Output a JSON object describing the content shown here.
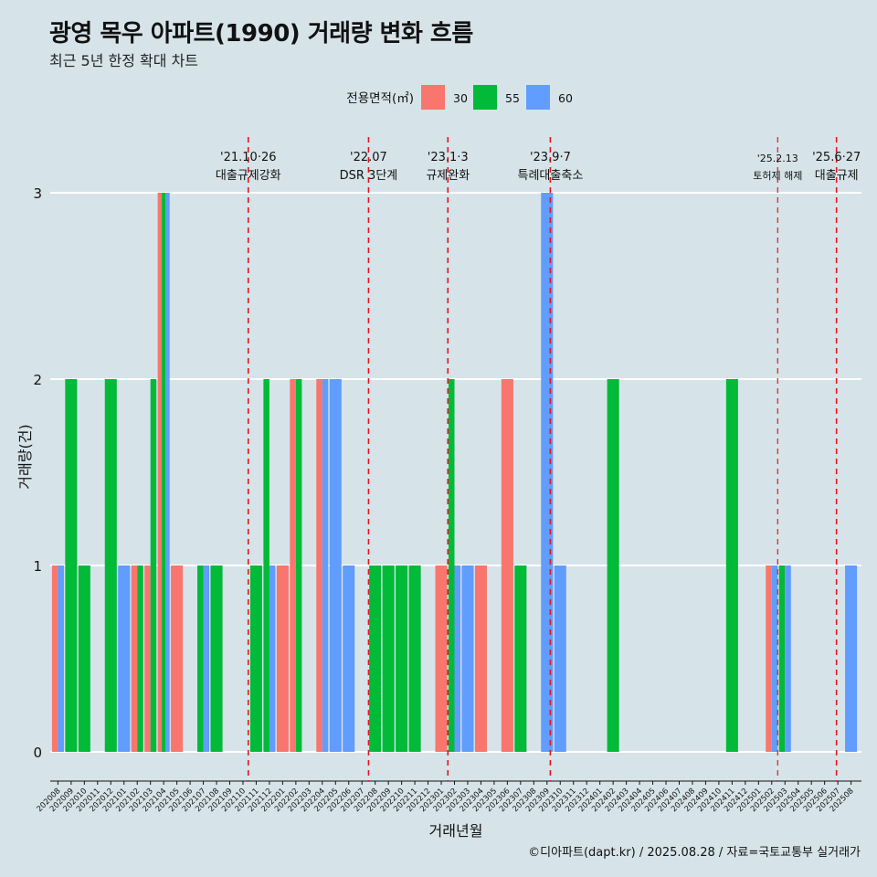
{
  "chart_data": {
    "type": "bar",
    "title": "광영 목우 아파트(1990) 거래량 변화 흐름",
    "subtitle": "최근 5년 한정 확대 차트",
    "xlabel": "거래년월",
    "ylabel": "거래량(건)",
    "ylim": [
      0,
      3
    ],
    "yticks": [
      0,
      1,
      2,
      3
    ],
    "legend": {
      "title": "전용면적(㎡)",
      "position": "top",
      "entries": [
        {
          "name": "30",
          "color": "#f8766d"
        },
        {
          "name": "55",
          "color": "#00ba38"
        },
        {
          "name": "60",
          "color": "#619cff"
        }
      ]
    },
    "categories": [
      "202008",
      "202009",
      "202010",
      "202011",
      "202012",
      "202101",
      "202102",
      "202103",
      "202104",
      "202105",
      "202106",
      "202107",
      "202108",
      "202109",
      "202110",
      "202111",
      "202112",
      "202201",
      "202202",
      "202203",
      "202204",
      "202205",
      "202206",
      "202207",
      "202208",
      "202209",
      "202210",
      "202211",
      "202212",
      "202301",
      "202302",
      "202303",
      "202304",
      "202305",
      "202306",
      "202307",
      "202308",
      "202309",
      "202310",
      "202311",
      "202312",
      "202401",
      "202402",
      "202403",
      "202404",
      "202405",
      "202406",
      "202407",
      "202408",
      "202409",
      "202410",
      "202411",
      "202412",
      "202501",
      "202502",
      "202503",
      "202504",
      "202505",
      "202506",
      "202507",
      "202508"
    ],
    "series": [
      {
        "name": "30",
        "values": [
          1,
          0,
          0,
          0,
          0,
          0,
          1,
          1,
          3,
          1,
          0,
          0,
          0,
          0,
          0,
          0,
          0,
          1,
          2,
          0,
          2,
          0,
          0,
          0,
          0,
          0,
          0,
          0,
          0,
          1,
          0,
          0,
          1,
          0,
          2,
          0,
          0,
          0,
          0,
          0,
          0,
          0,
          0,
          0,
          0,
          0,
          0,
          0,
          0,
          0,
          0,
          0,
          0,
          0,
          1,
          0,
          0,
          0,
          0,
          0,
          0
        ]
      },
      {
        "name": "55",
        "values": [
          0,
          2,
          1,
          0,
          2,
          0,
          1,
          2,
          3,
          0,
          0,
          1,
          1,
          0,
          0,
          1,
          2,
          0,
          2,
          0,
          0,
          0,
          0,
          0,
          1,
          1,
          1,
          1,
          0,
          0,
          2,
          0,
          0,
          0,
          0,
          1,
          0,
          0,
          0,
          0,
          0,
          0,
          2,
          0,
          0,
          0,
          0,
          0,
          0,
          0,
          0,
          2,
          0,
          0,
          0,
          1,
          0,
          0,
          0,
          0,
          0
        ]
      },
      {
        "name": "60",
        "values": [
          1,
          0,
          0,
          0,
          0,
          1,
          0,
          0,
          3,
          0,
          0,
          1,
          0,
          0,
          0,
          0,
          1,
          0,
          0,
          0,
          2,
          2,
          1,
          0,
          0,
          0,
          0,
          0,
          0,
          0,
          1,
          1,
          0,
          0,
          0,
          0,
          0,
          3,
          1,
          0,
          0,
          0,
          0,
          0,
          0,
          0,
          0,
          0,
          0,
          0,
          0,
          0,
          0,
          0,
          1,
          1,
          0,
          0,
          0,
          0,
          1
        ]
      }
    ],
    "annotations": [
      {
        "month": "202110",
        "offset": 0.4,
        "date": "'21.10·26",
        "text": "대출규제강화"
      },
      {
        "month": "202207",
        "offset": 0.5,
        "date": "'22.07",
        "text": "DSR 3단계"
      },
      {
        "month": "202301",
        "offset": 0.5,
        "date": "'23.1·3",
        "text": "규제완화"
      },
      {
        "month": "202309",
        "offset": 0.25,
        "date": "'23.9·7",
        "text": "특례대출축소"
      },
      {
        "month": "202502",
        "offset": 0.45,
        "date": "'25.2.13",
        "text": "토허제 해제",
        "small": true
      },
      {
        "month": "202506",
        "offset": 0.9,
        "date": "'25.6·27",
        "text": "대출규제"
      }
    ]
  },
  "caption": "©디아파트(dapt.kr) / 2025.08.28 / 자료=국토교통부 실거래가"
}
